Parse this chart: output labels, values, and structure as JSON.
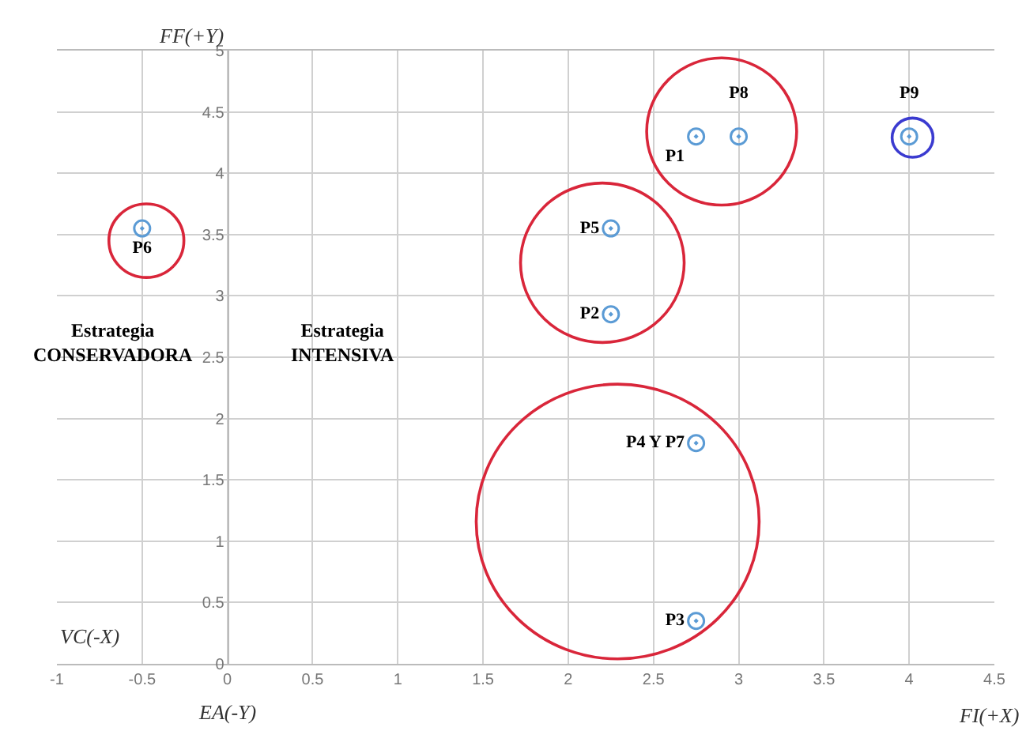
{
  "chart_data": {
    "type": "scatter",
    "xlabel": "FI(+X)",
    "ylabel": "FF(+Y)",
    "annotations": [
      "VC(-X)",
      "EA(-Y)",
      "Estrategia\nCONSERVADORA",
      "Estrategia\nINTENSIVA"
    ],
    "series": [
      {
        "name": "P1",
        "color": "#5b9bd5",
        "x": [
          2.75
        ],
        "values": [
          4.3
        ]
      },
      {
        "name": "P8",
        "color": "#5b9bd5",
        "x": [
          3.0
        ],
        "values": [
          4.3
        ]
      },
      {
        "name": "P9",
        "color": "#5b9bd5",
        "x": [
          4.0
        ],
        "values": [
          4.3
        ]
      },
      {
        "name": "P5",
        "color": "#5b9bd5",
        "x": [
          2.25
        ],
        "values": [
          3.55
        ]
      },
      {
        "name": "P2",
        "color": "#5b9bd5",
        "x": [
          2.25
        ],
        "values": [
          2.85
        ]
      },
      {
        "name": "P6",
        "color": "#5b9bd5",
        "x": [
          -0.5
        ],
        "values": [
          3.55
        ]
      },
      {
        "name": "P4 Y P7",
        "color": "#5b9bd5",
        "x": [
          2.75
        ],
        "values": [
          1.8
        ]
      },
      {
        "name": "P3",
        "color": "#5b9bd5",
        "x": [
          2.75
        ],
        "values": [
          0.35
        ]
      }
    ],
    "xlim": [
      -1,
      4.5
    ],
    "xticks": [
      -1,
      -0.5,
      0,
      0.5,
      1,
      1.5,
      2,
      2.5,
      3,
      3.5,
      4,
      4.5
    ],
    "ylim": [
      0,
      5
    ],
    "yticks": [
      0,
      0.5,
      1,
      1.5,
      2,
      2.5,
      3,
      3.5,
      4,
      4.5,
      5
    ],
    "grid": true,
    "legend": false,
    "marker": "circle"
  }
}
